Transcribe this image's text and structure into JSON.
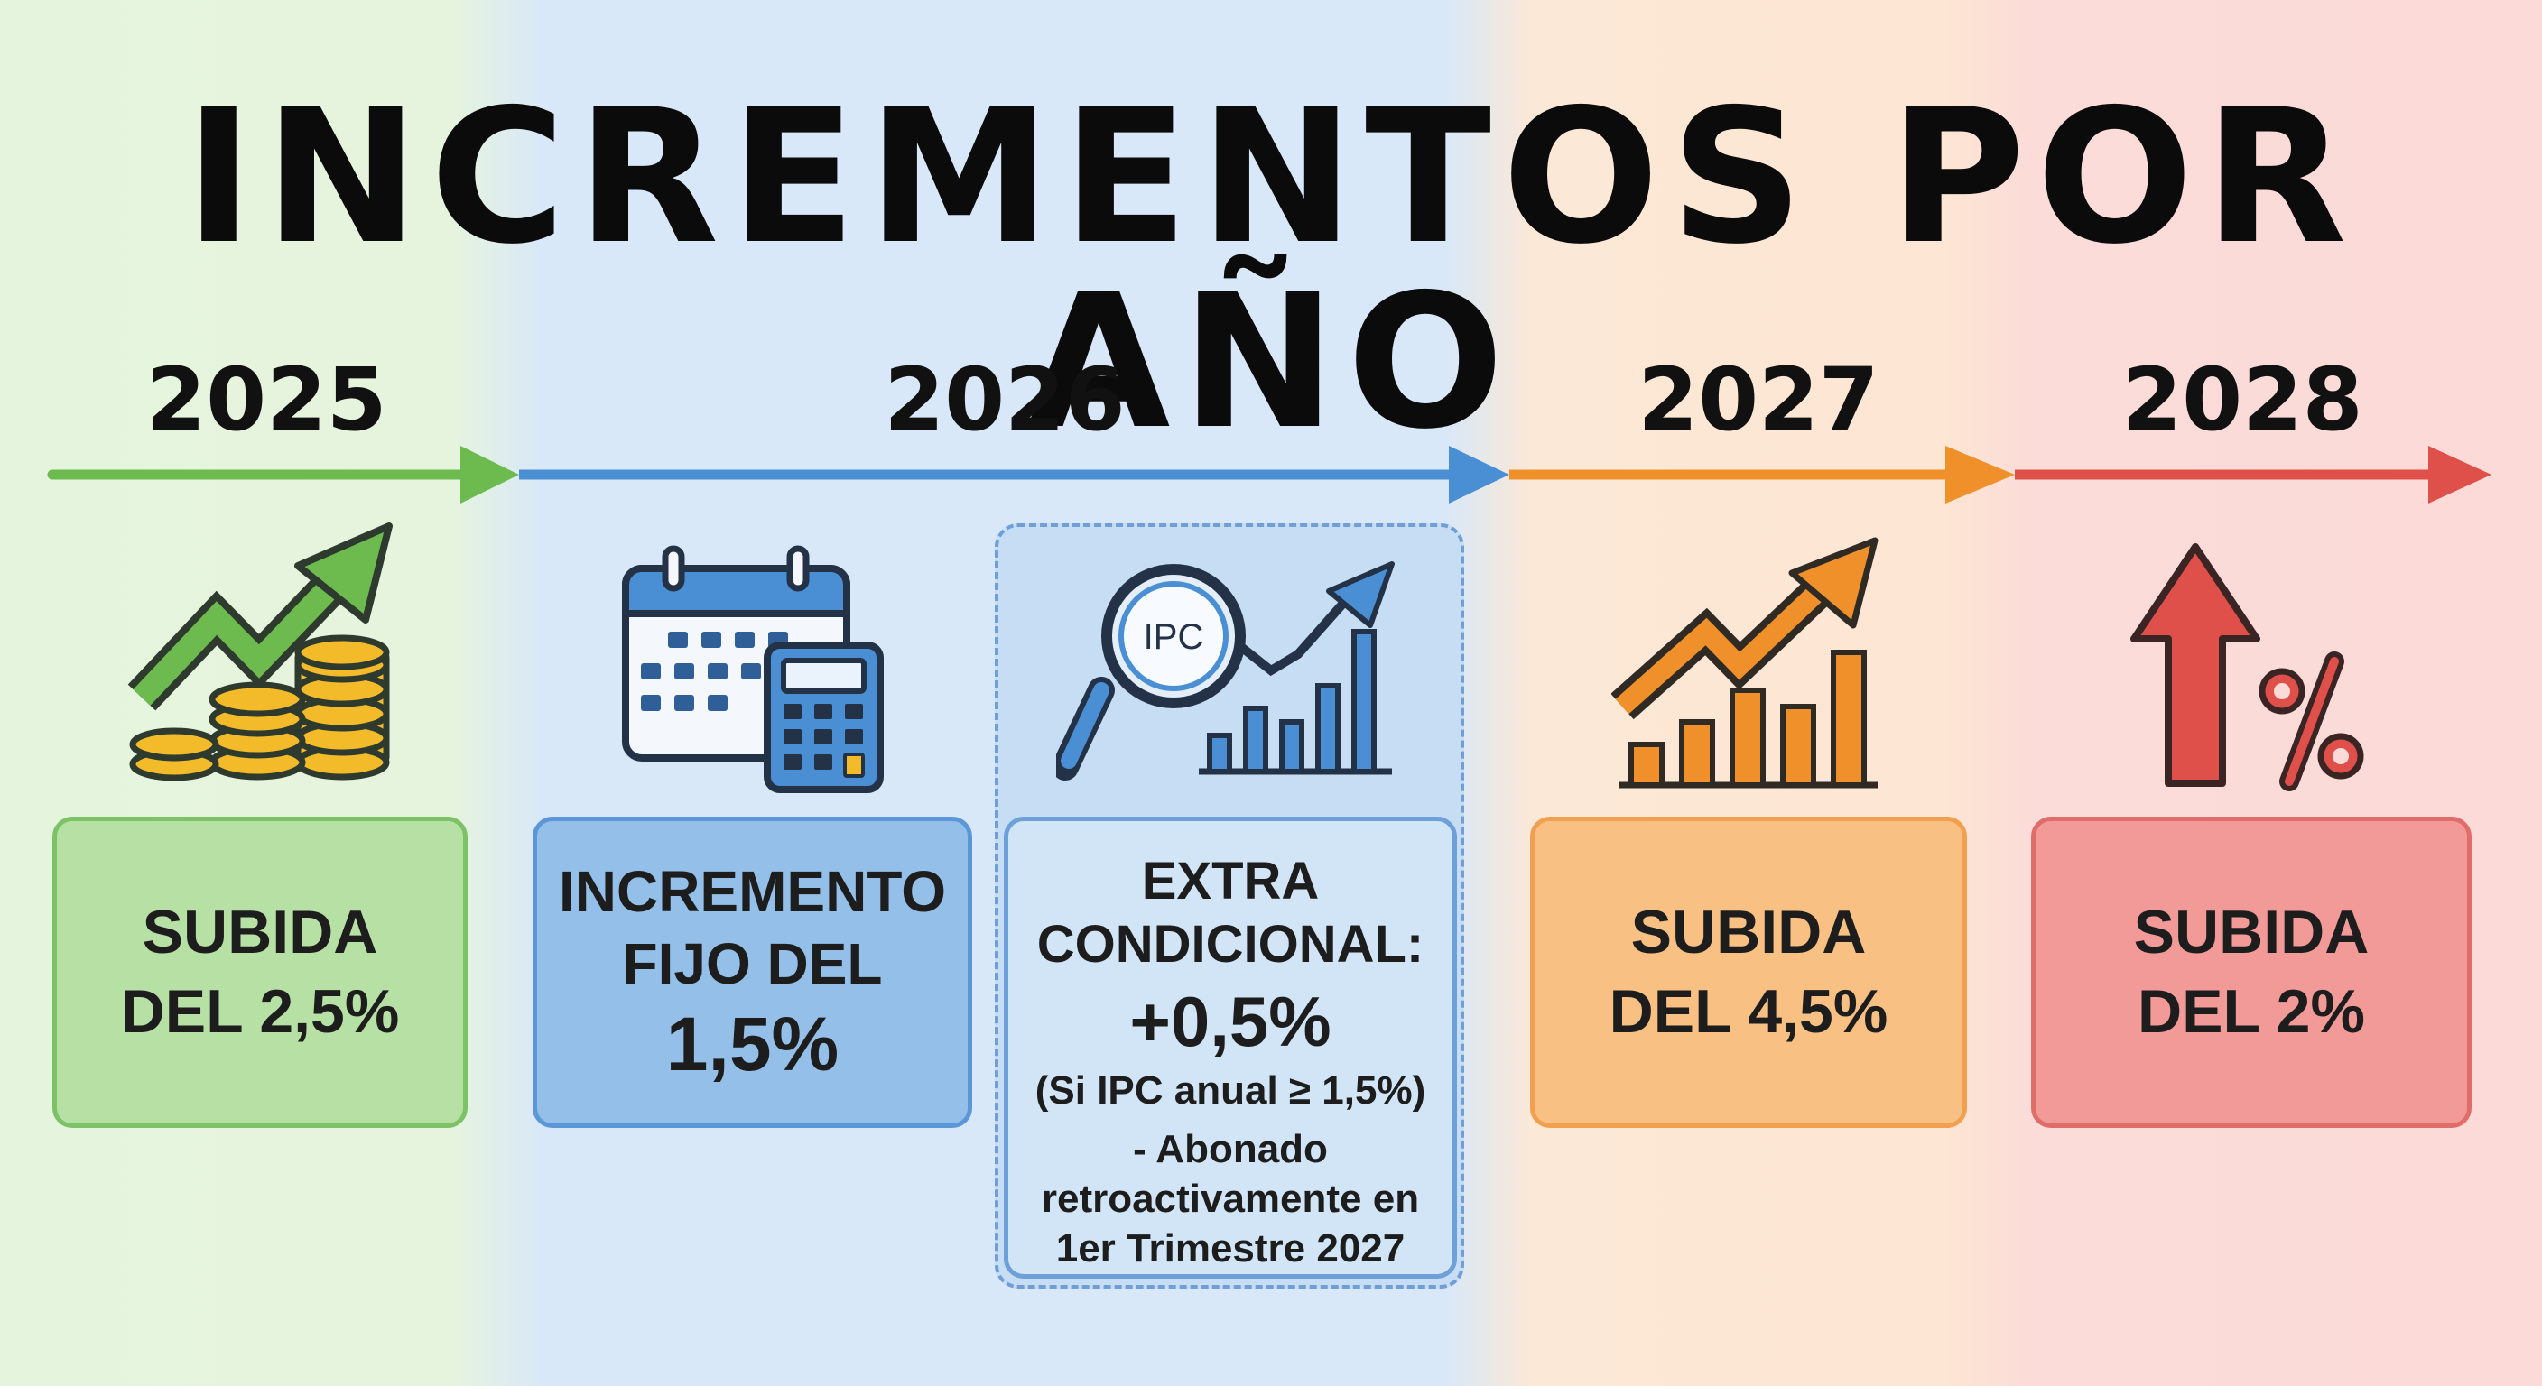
{
  "title": "INCREMENTOS POR AÑO",
  "colors": {
    "green": "#6dbb4f",
    "blue": "#4a8fd4",
    "orange": "#f0902a",
    "red": "#e0504a",
    "gold": "#f3bb2a"
  },
  "timeline": [
    {
      "year": "2025",
      "icon": "growth-arrow-coins-icon",
      "line1": "SUBIDA",
      "line2": "DEL 2,5%"
    },
    {
      "year": "2026",
      "icon": "calendar-calculator-icon",
      "line1": "INCREMENTO",
      "line2": "FIJO DEL",
      "line3": "1,5%",
      "extra": {
        "icon": "ipc-magnifier-chart-icon",
        "icon_text": "IPC",
        "line1": "EXTRA",
        "line2": "CONDICIONAL:",
        "line3": "+0,5%",
        "line4": "(Si IPC anual ≥ 1,5%)",
        "line5": "- Abonado",
        "line6": "retroactivamente en",
        "line7": "1er Trimestre 2027"
      }
    },
    {
      "year": "2027",
      "icon": "bar-chart-growth-icon",
      "line1": "SUBIDA",
      "line2": "DEL 4,5%"
    },
    {
      "year": "2028",
      "icon": "up-arrow-percent-icon",
      "line1": "SUBIDA",
      "line2": "DEL 2%"
    }
  ]
}
